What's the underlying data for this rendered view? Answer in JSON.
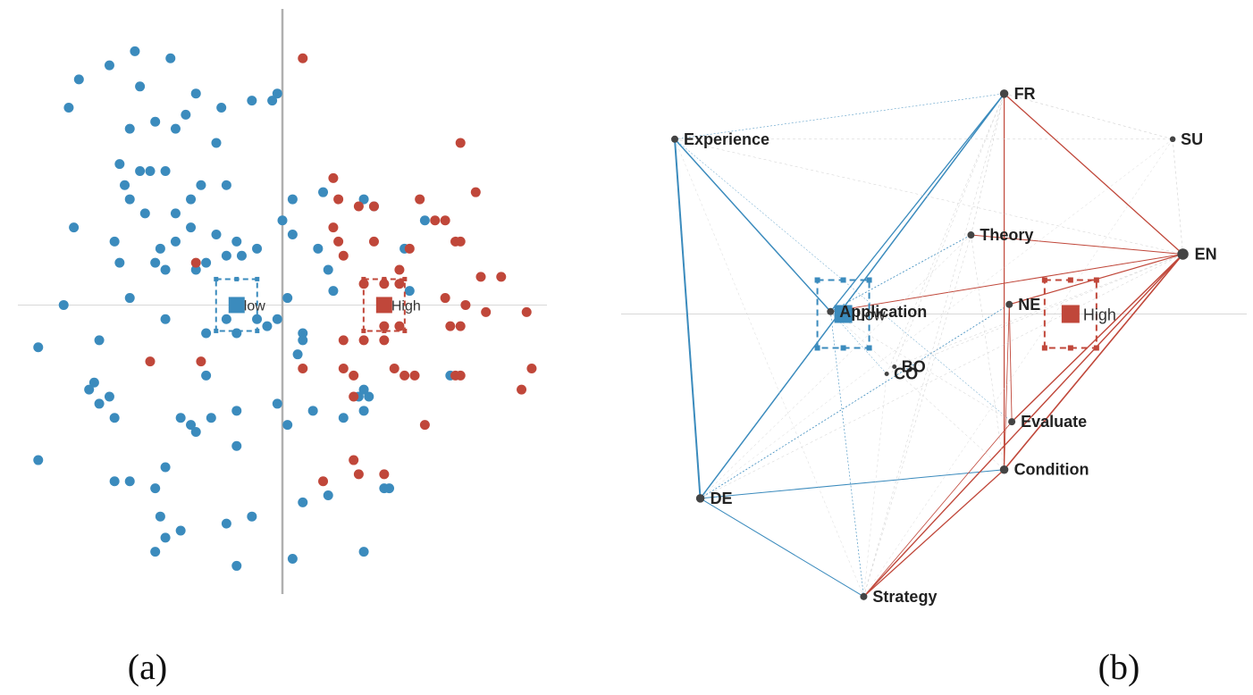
{
  "colors": {
    "low": "#3b8bbd",
    "high": "#c0473a",
    "axis": "#b0b0b0",
    "edge_light": "#cfcfcf"
  },
  "panel_a": {
    "caption": "(a)",
    "group_labels": {
      "low": "low",
      "high": "High"
    },
    "chart_data": {
      "type": "scatter",
      "x": [],
      "y": [],
      "groups": [
        {
          "name": "low",
          "color": "#3b8bbd"
        },
        {
          "name": "High",
          "color": "#c0473a"
        }
      ],
      "points": [
        [
          -3.4,
          3.4,
          "low"
        ],
        [
          -2.9,
          3.6,
          "low"
        ],
        [
          -2.8,
          3.1,
          "low"
        ],
        [
          -2.2,
          3.5,
          "low"
        ],
        [
          -4.0,
          3.2,
          "low"
        ],
        [
          -4.2,
          2.8,
          "low"
        ],
        [
          -1.7,
          3.0,
          "low"
        ],
        [
          -1.9,
          2.7,
          "low"
        ],
        [
          -2.5,
          2.6,
          "low"
        ],
        [
          -2.1,
          2.5,
          "low"
        ],
        [
          -3.0,
          2.5,
          "low"
        ],
        [
          -1.2,
          2.8,
          "low"
        ],
        [
          -0.6,
          2.9,
          "low"
        ],
        [
          -0.2,
          2.9,
          "low"
        ],
        [
          -0.1,
          3.0,
          "low"
        ],
        [
          -1.3,
          2.3,
          "low"
        ],
        [
          -3.2,
          2.0,
          "low"
        ],
        [
          -2.8,
          1.9,
          "low"
        ],
        [
          -2.6,
          1.9,
          "low"
        ],
        [
          -2.3,
          1.9,
          "low"
        ],
        [
          -3.1,
          1.7,
          "low"
        ],
        [
          -3.0,
          1.5,
          "low"
        ],
        [
          -1.8,
          1.5,
          "low"
        ],
        [
          -1.6,
          1.7,
          "low"
        ],
        [
          -1.1,
          1.7,
          "low"
        ],
        [
          -2.7,
          1.3,
          "low"
        ],
        [
          -2.1,
          1.3,
          "low"
        ],
        [
          -1.8,
          1.1,
          "low"
        ],
        [
          -4.1,
          1.1,
          "low"
        ],
        [
          -3.3,
          0.9,
          "low"
        ],
        [
          -2.4,
          0.8,
          "low"
        ],
        [
          -2.1,
          0.9,
          "low"
        ],
        [
          -1.3,
          1.0,
          "low"
        ],
        [
          -0.9,
          0.9,
          "low"
        ],
        [
          -0.5,
          0.8,
          "low"
        ],
        [
          -0.8,
          0.7,
          "low"
        ],
        [
          -3.2,
          0.6,
          "low"
        ],
        [
          -2.5,
          0.6,
          "low"
        ],
        [
          -2.3,
          0.5,
          "low"
        ],
        [
          -1.7,
          0.5,
          "low"
        ],
        [
          -1.5,
          0.6,
          "low"
        ],
        [
          -1.1,
          0.7,
          "low"
        ],
        [
          0.2,
          1.5,
          "low"
        ],
        [
          0.0,
          1.2,
          "low"
        ],
        [
          0.2,
          1.0,
          "low"
        ],
        [
          0.7,
          0.8,
          "low"
        ],
        [
          0.9,
          0.5,
          "low"
        ],
        [
          1.0,
          0.2,
          "low"
        ],
        [
          -3.0,
          0.1,
          "low"
        ],
        [
          -4.3,
          0.0,
          "low"
        ],
        [
          -2.3,
          -0.2,
          "low"
        ],
        [
          -1.1,
          -0.2,
          "low"
        ],
        [
          -0.5,
          -0.2,
          "low"
        ],
        [
          -0.1,
          -0.2,
          "low"
        ],
        [
          0.1,
          0.1,
          "low"
        ],
        [
          -4.8,
          -0.6,
          "low"
        ],
        [
          -3.6,
          -0.5,
          "low"
        ],
        [
          -1.5,
          -0.4,
          "low"
        ],
        [
          -0.3,
          -0.3,
          "low"
        ],
        [
          -0.9,
          -0.4,
          "low"
        ],
        [
          0.4,
          -0.4,
          "low"
        ],
        [
          0.4,
          -0.5,
          "low"
        ],
        [
          0.3,
          -0.7,
          "low"
        ],
        [
          -1.5,
          -1.0,
          "low"
        ],
        [
          -3.7,
          -1.1,
          "low"
        ],
        [
          -3.8,
          -1.2,
          "low"
        ],
        [
          -3.4,
          -1.3,
          "low"
        ],
        [
          -3.6,
          -1.4,
          "low"
        ],
        [
          -3.3,
          -1.6,
          "low"
        ],
        [
          -2.0,
          -1.6,
          "low"
        ],
        [
          -1.4,
          -1.6,
          "low"
        ],
        [
          -0.9,
          -1.5,
          "low"
        ],
        [
          -1.8,
          -1.7,
          "low"
        ],
        [
          -1.7,
          -1.8,
          "low"
        ],
        [
          -0.1,
          -1.4,
          "low"
        ],
        [
          0.6,
          -1.5,
          "low"
        ],
        [
          1.2,
          -1.6,
          "low"
        ],
        [
          -4.8,
          -2.2,
          "low"
        ],
        [
          -3.3,
          -2.5,
          "low"
        ],
        [
          -3.0,
          -2.5,
          "low"
        ],
        [
          -2.5,
          -2.6,
          "low"
        ],
        [
          -2.3,
          -2.3,
          "low"
        ],
        [
          -0.9,
          -2.0,
          "low"
        ],
        [
          0.1,
          -1.7,
          "low"
        ],
        [
          1.6,
          -1.5,
          "low"
        ],
        [
          1.5,
          -1.3,
          "low"
        ],
        [
          1.6,
          -1.2,
          "low"
        ],
        [
          1.7,
          -1.3,
          "low"
        ],
        [
          0.4,
          -2.8,
          "low"
        ],
        [
          0.9,
          -2.7,
          "low"
        ],
        [
          2.0,
          -2.6,
          "low"
        ],
        [
          2.1,
          -2.6,
          "low"
        ],
        [
          -2.4,
          -3.0,
          "low"
        ],
        [
          -1.1,
          -3.1,
          "low"
        ],
        [
          -0.6,
          -3.0,
          "low"
        ],
        [
          -2.3,
          -3.3,
          "low"
        ],
        [
          -2.0,
          -3.2,
          "low"
        ],
        [
          -2.5,
          -3.5,
          "low"
        ],
        [
          -0.9,
          -3.7,
          "low"
        ],
        [
          0.2,
          -3.6,
          "low"
        ],
        [
          1.6,
          -3.5,
          "low"
        ],
        [
          3.3,
          -1.0,
          "low"
        ],
        [
          2.4,
          0.8,
          "low"
        ],
        [
          2.8,
          1.2,
          "low"
        ],
        [
          2.5,
          0.2,
          "low"
        ],
        [
          1.6,
          1.5,
          "low"
        ],
        [
          1.8,
          1.4,
          "low"
        ],
        [
          0.8,
          1.6,
          "low"
        ],
        [
          0.4,
          3.5,
          "high"
        ],
        [
          3.5,
          2.3,
          "high"
        ],
        [
          1.0,
          1.8,
          "high"
        ],
        [
          1.1,
          1.5,
          "high"
        ],
        [
          1.5,
          1.4,
          "high"
        ],
        [
          1.8,
          1.4,
          "high"
        ],
        [
          1.0,
          1.1,
          "high"
        ],
        [
          1.8,
          0.9,
          "high"
        ],
        [
          2.5,
          0.8,
          "high"
        ],
        [
          3.0,
          1.2,
          "high"
        ],
        [
          3.2,
          1.2,
          "high"
        ],
        [
          3.5,
          0.9,
          "high"
        ],
        [
          3.4,
          0.9,
          "high"
        ],
        [
          3.9,
          0.4,
          "high"
        ],
        [
          4.3,
          0.4,
          "high"
        ],
        [
          2.3,
          0.5,
          "high"
        ],
        [
          1.2,
          0.7,
          "high"
        ],
        [
          1.1,
          0.9,
          "high"
        ],
        [
          1.6,
          0.3,
          "high"
        ],
        [
          2.0,
          0.3,
          "high"
        ],
        [
          2.3,
          0.3,
          "high"
        ],
        [
          3.2,
          0.1,
          "high"
        ],
        [
          3.6,
          0.0,
          "high"
        ],
        [
          4.0,
          -0.1,
          "high"
        ],
        [
          4.8,
          -0.1,
          "high"
        ],
        [
          3.3,
          -0.3,
          "high"
        ],
        [
          3.5,
          -0.3,
          "high"
        ],
        [
          2.0,
          -0.3,
          "high"
        ],
        [
          2.3,
          -0.3,
          "high"
        ],
        [
          1.2,
          -0.5,
          "high"
        ],
        [
          1.6,
          -0.5,
          "high"
        ],
        [
          2.0,
          -0.5,
          "high"
        ],
        [
          1.2,
          -0.9,
          "high"
        ],
        [
          1.4,
          -1.0,
          "high"
        ],
        [
          2.2,
          -0.9,
          "high"
        ],
        [
          2.4,
          -1.0,
          "high"
        ],
        [
          2.6,
          -1.0,
          "high"
        ],
        [
          0.4,
          -0.9,
          "high"
        ],
        [
          1.4,
          -1.3,
          "high"
        ],
        [
          3.4,
          -1.0,
          "high"
        ],
        [
          3.5,
          -1.0,
          "high"
        ],
        [
          4.9,
          -0.9,
          "high"
        ],
        [
          4.7,
          -1.2,
          "high"
        ],
        [
          2.8,
          -1.7,
          "high"
        ],
        [
          1.4,
          -2.2,
          "high"
        ],
        [
          0.8,
          -2.5,
          "high"
        ],
        [
          1.5,
          -2.4,
          "high"
        ],
        [
          2.0,
          -2.4,
          "high"
        ],
        [
          -1.7,
          0.6,
          "high"
        ],
        [
          -2.6,
          -0.8,
          "high"
        ],
        [
          -1.6,
          -0.8,
          "high"
        ],
        [
          3.8,
          1.6,
          "high"
        ],
        [
          2.7,
          1.5,
          "high"
        ]
      ],
      "centroids": [
        {
          "name": "low",
          "x": -0.9,
          "y": 0.0
        },
        {
          "name": "High",
          "x": 2.0,
          "y": 0.0
        }
      ],
      "xlim": [
        -5.2,
        5.2
      ],
      "ylim": [
        -4.1,
        4.2
      ],
      "axis_x_at": 0.0,
      "axis_y_at": 0.0
    }
  },
  "panel_b": {
    "caption": "(b)",
    "group_labels": {
      "low": "Low",
      "high": "High"
    },
    "chart_data": {
      "type": "network",
      "nodes": [
        {
          "id": "FR",
          "label": "FR",
          "x": 0.55,
          "y": 0.92,
          "size": 5
        },
        {
          "id": "Experience",
          "label": "Experience",
          "x": -0.74,
          "y": 0.73,
          "size": 4
        },
        {
          "id": "SU",
          "label": "SU",
          "x": 1.21,
          "y": 0.73,
          "size": 3
        },
        {
          "id": "Theory",
          "label": "Theory",
          "x": 0.42,
          "y": 0.33,
          "size": 4
        },
        {
          "id": "EN",
          "label": "EN",
          "x": 1.25,
          "y": 0.25,
          "size": 7
        },
        {
          "id": "Application",
          "label": "Application",
          "x": -0.13,
          "y": 0.01,
          "size": 4
        },
        {
          "id": "NE",
          "label": "NE",
          "x": 0.57,
          "y": 0.04,
          "size": 4
        },
        {
          "id": "CO",
          "label": "CO",
          "x": 0.09,
          "y": -0.25,
          "size": 2
        },
        {
          "id": "BO",
          "label": "BO",
          "x": 0.12,
          "y": -0.22,
          "size": 2
        },
        {
          "id": "Evaluate",
          "label": "Evaluate",
          "x": 0.58,
          "y": -0.45,
          "size": 4
        },
        {
          "id": "Condition",
          "label": "Condition",
          "x": 0.55,
          "y": -0.65,
          "size": 5
        },
        {
          "id": "DE",
          "label": "DE",
          "x": -0.64,
          "y": -0.77,
          "size": 5
        },
        {
          "id": "Strategy",
          "label": "Strategy",
          "x": 0.0,
          "y": -1.18,
          "size": 4
        }
      ],
      "edges": [
        [
          "Experience",
          "DE",
          "low",
          2
        ],
        [
          "Experience",
          "Application",
          "low",
          1.5
        ],
        [
          "FR",
          "DE",
          "low",
          1.5
        ],
        [
          "FR",
          "Application",
          "low",
          1.3
        ],
        [
          "DE",
          "Strategy",
          "low",
          1
        ],
        [
          "DE",
          "Condition",
          "low",
          1
        ],
        [
          "DE",
          "NE",
          "low",
          0.8
        ],
        [
          "Application",
          "Theory",
          "low",
          0.8
        ],
        [
          "Application",
          "Strategy",
          "low",
          0.6
        ],
        [
          "Experience",
          "FR",
          "low",
          0.5
        ],
        [
          "Experience",
          "CO",
          "low",
          0.5
        ],
        [
          "Experience",
          "Evaluate",
          "low",
          0.5
        ],
        [
          "FR",
          "EN",
          "high",
          1.3
        ],
        [
          "FR",
          "Condition",
          "high",
          1.2
        ],
        [
          "Theory",
          "EN",
          "high",
          1.0
        ],
        [
          "Application",
          "EN",
          "high",
          1.0
        ],
        [
          "NE",
          "EN",
          "high",
          1.2
        ],
        [
          "Evaluate",
          "EN",
          "high",
          1.4
        ],
        [
          "Condition",
          "EN",
          "high",
          1.6
        ],
        [
          "Strategy",
          "EN",
          "high",
          1.4
        ],
        [
          "Strategy",
          "Condition",
          "high",
          1.3
        ],
        [
          "NE",
          "Evaluate",
          "high",
          0.9
        ],
        [
          "NE",
          "Condition",
          "high",
          0.8
        ],
        [
          "Strategy",
          "Evaluate",
          "high",
          0.8
        ],
        [
          "FR",
          "SU",
          "light",
          0.6
        ],
        [
          "SU",
          "EN",
          "light",
          0.6
        ],
        [
          "Experience",
          "SU",
          "light",
          0.5
        ],
        [
          "Experience",
          "EN",
          "light",
          0.5
        ],
        [
          "Theory",
          "FR",
          "light",
          0.6
        ],
        [
          "Theory",
          "Strategy",
          "light",
          0.5
        ],
        [
          "CO",
          "EN",
          "light",
          0.5
        ],
        [
          "CO",
          "FR",
          "light",
          0.5
        ],
        [
          "BO",
          "EN",
          "light",
          0.5
        ],
        [
          "BO",
          "FR",
          "light",
          0.5
        ],
        [
          "DE",
          "EN",
          "light",
          0.5
        ],
        [
          "DE",
          "Theory",
          "light",
          0.5
        ],
        [
          "Experience",
          "Strategy",
          "light",
          0.4
        ],
        [
          "FR",
          "Strategy",
          "light",
          0.5
        ],
        [
          "SU",
          "Strategy",
          "light",
          0.4
        ],
        [
          "SU",
          "DE",
          "light",
          0.4
        ],
        [
          "Application",
          "Condition",
          "light",
          0.5
        ],
        [
          "Application",
          "Evaluate",
          "light",
          0.5
        ],
        [
          "Theory",
          "Condition",
          "light",
          0.5
        ],
        [
          "CO",
          "Strategy",
          "light",
          0.4
        ]
      ],
      "centroids": [
        {
          "name": "Low",
          "x": -0.08,
          "y": 0.0
        },
        {
          "name": "High",
          "x": 0.81,
          "y": 0.0
        }
      ],
      "xlim": [
        -0.95,
        1.5
      ],
      "ylim": [
        -1.3,
        1.05
      ],
      "axis_y_at": 0.0
    }
  }
}
